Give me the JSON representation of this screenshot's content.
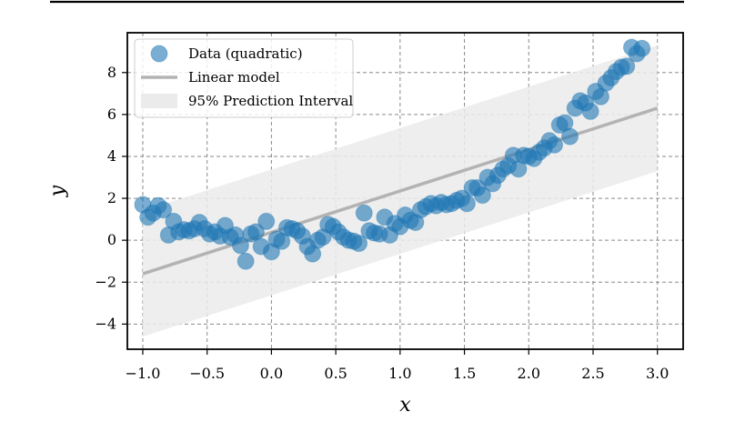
{
  "chart_data": {
    "type": "scatter",
    "xlabel": "x",
    "ylabel": "y",
    "xlim": [
      -1.12,
      3.2
    ],
    "ylim": [
      -5.2,
      9.9
    ],
    "x_ticks": [
      -1.0,
      -0.5,
      0.0,
      0.5,
      1.0,
      1.5,
      2.0,
      2.5,
      3.0
    ],
    "x_tick_labels": [
      "−1.0",
      "−0.5",
      "0.0",
      "0.5",
      "1.0",
      "1.5",
      "2.0",
      "2.5",
      "3.0"
    ],
    "y_ticks": [
      -4,
      -2,
      0,
      2,
      4,
      6,
      8
    ],
    "y_tick_labels": [
      "−4",
      "−2",
      "0",
      "2",
      "4",
      "6",
      "8"
    ],
    "grid": true,
    "legend": {
      "placement": "top-left",
      "entries": [
        {
          "label": "Data (quadratic)",
          "kind": "marker"
        },
        {
          "label": "Linear model",
          "kind": "line"
        },
        {
          "label": "95% Prediction Interval",
          "kind": "patch"
        }
      ]
    },
    "series": [
      {
        "name": "Data (quadratic)",
        "kind": "scatter",
        "color": "#1f77b4",
        "points": [
          [
            -1.0,
            1.7
          ],
          [
            -0.96,
            1.1
          ],
          [
            -0.92,
            1.3
          ],
          [
            -0.88,
            1.65
          ],
          [
            -0.84,
            1.45
          ],
          [
            -0.8,
            0.25
          ],
          [
            -0.76,
            0.9
          ],
          [
            -0.72,
            0.4
          ],
          [
            -0.68,
            0.5
          ],
          [
            -0.64,
            0.45
          ],
          [
            -0.6,
            0.55
          ],
          [
            -0.56,
            0.85
          ],
          [
            -0.52,
            0.55
          ],
          [
            -0.48,
            0.3
          ],
          [
            -0.44,
            0.4
          ],
          [
            -0.4,
            0.2
          ],
          [
            -0.36,
            0.7
          ],
          [
            -0.32,
            0.15
          ],
          [
            -0.28,
            0.25
          ],
          [
            -0.24,
            -0.25
          ],
          [
            -0.2,
            -1.0
          ],
          [
            -0.16,
            0.3
          ],
          [
            -0.12,
            0.4
          ],
          [
            -0.08,
            -0.3
          ],
          [
            -0.04,
            0.9
          ],
          [
            0.0,
            -0.55
          ],
          [
            0.04,
            0.05
          ],
          [
            0.08,
            -0.05
          ],
          [
            0.12,
            0.6
          ],
          [
            0.16,
            0.55
          ],
          [
            0.2,
            0.45
          ],
          [
            0.24,
            0.2
          ],
          [
            0.28,
            -0.3
          ],
          [
            0.32,
            -0.65
          ],
          [
            0.36,
            0.0
          ],
          [
            0.4,
            0.15
          ],
          [
            0.44,
            0.75
          ],
          [
            0.48,
            0.65
          ],
          [
            0.52,
            0.4
          ],
          [
            0.56,
            0.15
          ],
          [
            0.6,
            0.0
          ],
          [
            0.64,
            -0.05
          ],
          [
            0.68,
            -0.15
          ],
          [
            0.72,
            1.3
          ],
          [
            0.76,
            0.45
          ],
          [
            0.8,
            0.35
          ],
          [
            0.84,
            0.3
          ],
          [
            0.88,
            1.1
          ],
          [
            0.92,
            0.25
          ],
          [
            0.96,
            0.8
          ],
          [
            1.0,
            0.65
          ],
          [
            1.04,
            1.2
          ],
          [
            1.08,
            0.95
          ],
          [
            1.12,
            0.85
          ],
          [
            1.16,
            1.45
          ],
          [
            1.2,
            1.6
          ],
          [
            1.24,
            1.75
          ],
          [
            1.28,
            1.65
          ],
          [
            1.32,
            1.8
          ],
          [
            1.36,
            1.7
          ],
          [
            1.4,
            1.75
          ],
          [
            1.44,
            1.9
          ],
          [
            1.48,
            2.0
          ],
          [
            1.52,
            1.75
          ],
          [
            1.56,
            2.5
          ],
          [
            1.6,
            2.5
          ],
          [
            1.64,
            2.15
          ],
          [
            1.68,
            3.0
          ],
          [
            1.72,
            2.7
          ],
          [
            1.76,
            3.1
          ],
          [
            1.8,
            3.4
          ],
          [
            1.84,
            3.55
          ],
          [
            1.88,
            4.05
          ],
          [
            1.92,
            3.4
          ],
          [
            1.96,
            4.05
          ],
          [
            2.0,
            4.0
          ],
          [
            2.04,
            3.9
          ],
          [
            2.08,
            4.2
          ],
          [
            2.12,
            4.4
          ],
          [
            2.16,
            4.75
          ],
          [
            2.2,
            4.55
          ],
          [
            2.24,
            5.5
          ],
          [
            2.28,
            5.6
          ],
          [
            2.32,
            4.95
          ],
          [
            2.36,
            6.3
          ],
          [
            2.4,
            6.65
          ],
          [
            2.44,
            6.55
          ],
          [
            2.48,
            6.15
          ],
          [
            2.52,
            7.1
          ],
          [
            2.56,
            6.85
          ],
          [
            2.6,
            7.5
          ],
          [
            2.64,
            7.75
          ],
          [
            2.68,
            8.05
          ],
          [
            2.72,
            8.25
          ],
          [
            2.76,
            8.3
          ],
          [
            2.8,
            9.2
          ],
          [
            2.84,
            8.9
          ],
          [
            2.88,
            9.15
          ]
        ]
      },
      {
        "name": "Linear model",
        "kind": "line",
        "color": "#b3b3b3",
        "points": [
          [
            -1.0,
            -1.6
          ],
          [
            3.0,
            6.3
          ]
        ]
      },
      {
        "name": "95% Prediction Interval",
        "kind": "band",
        "color": "#ebebeb",
        "lower": [
          [
            -1.0,
            -4.6
          ],
          [
            3.0,
            3.3
          ]
        ],
        "upper": [
          [
            -1.0,
            1.4
          ],
          [
            3.0,
            9.3
          ]
        ]
      }
    ]
  }
}
